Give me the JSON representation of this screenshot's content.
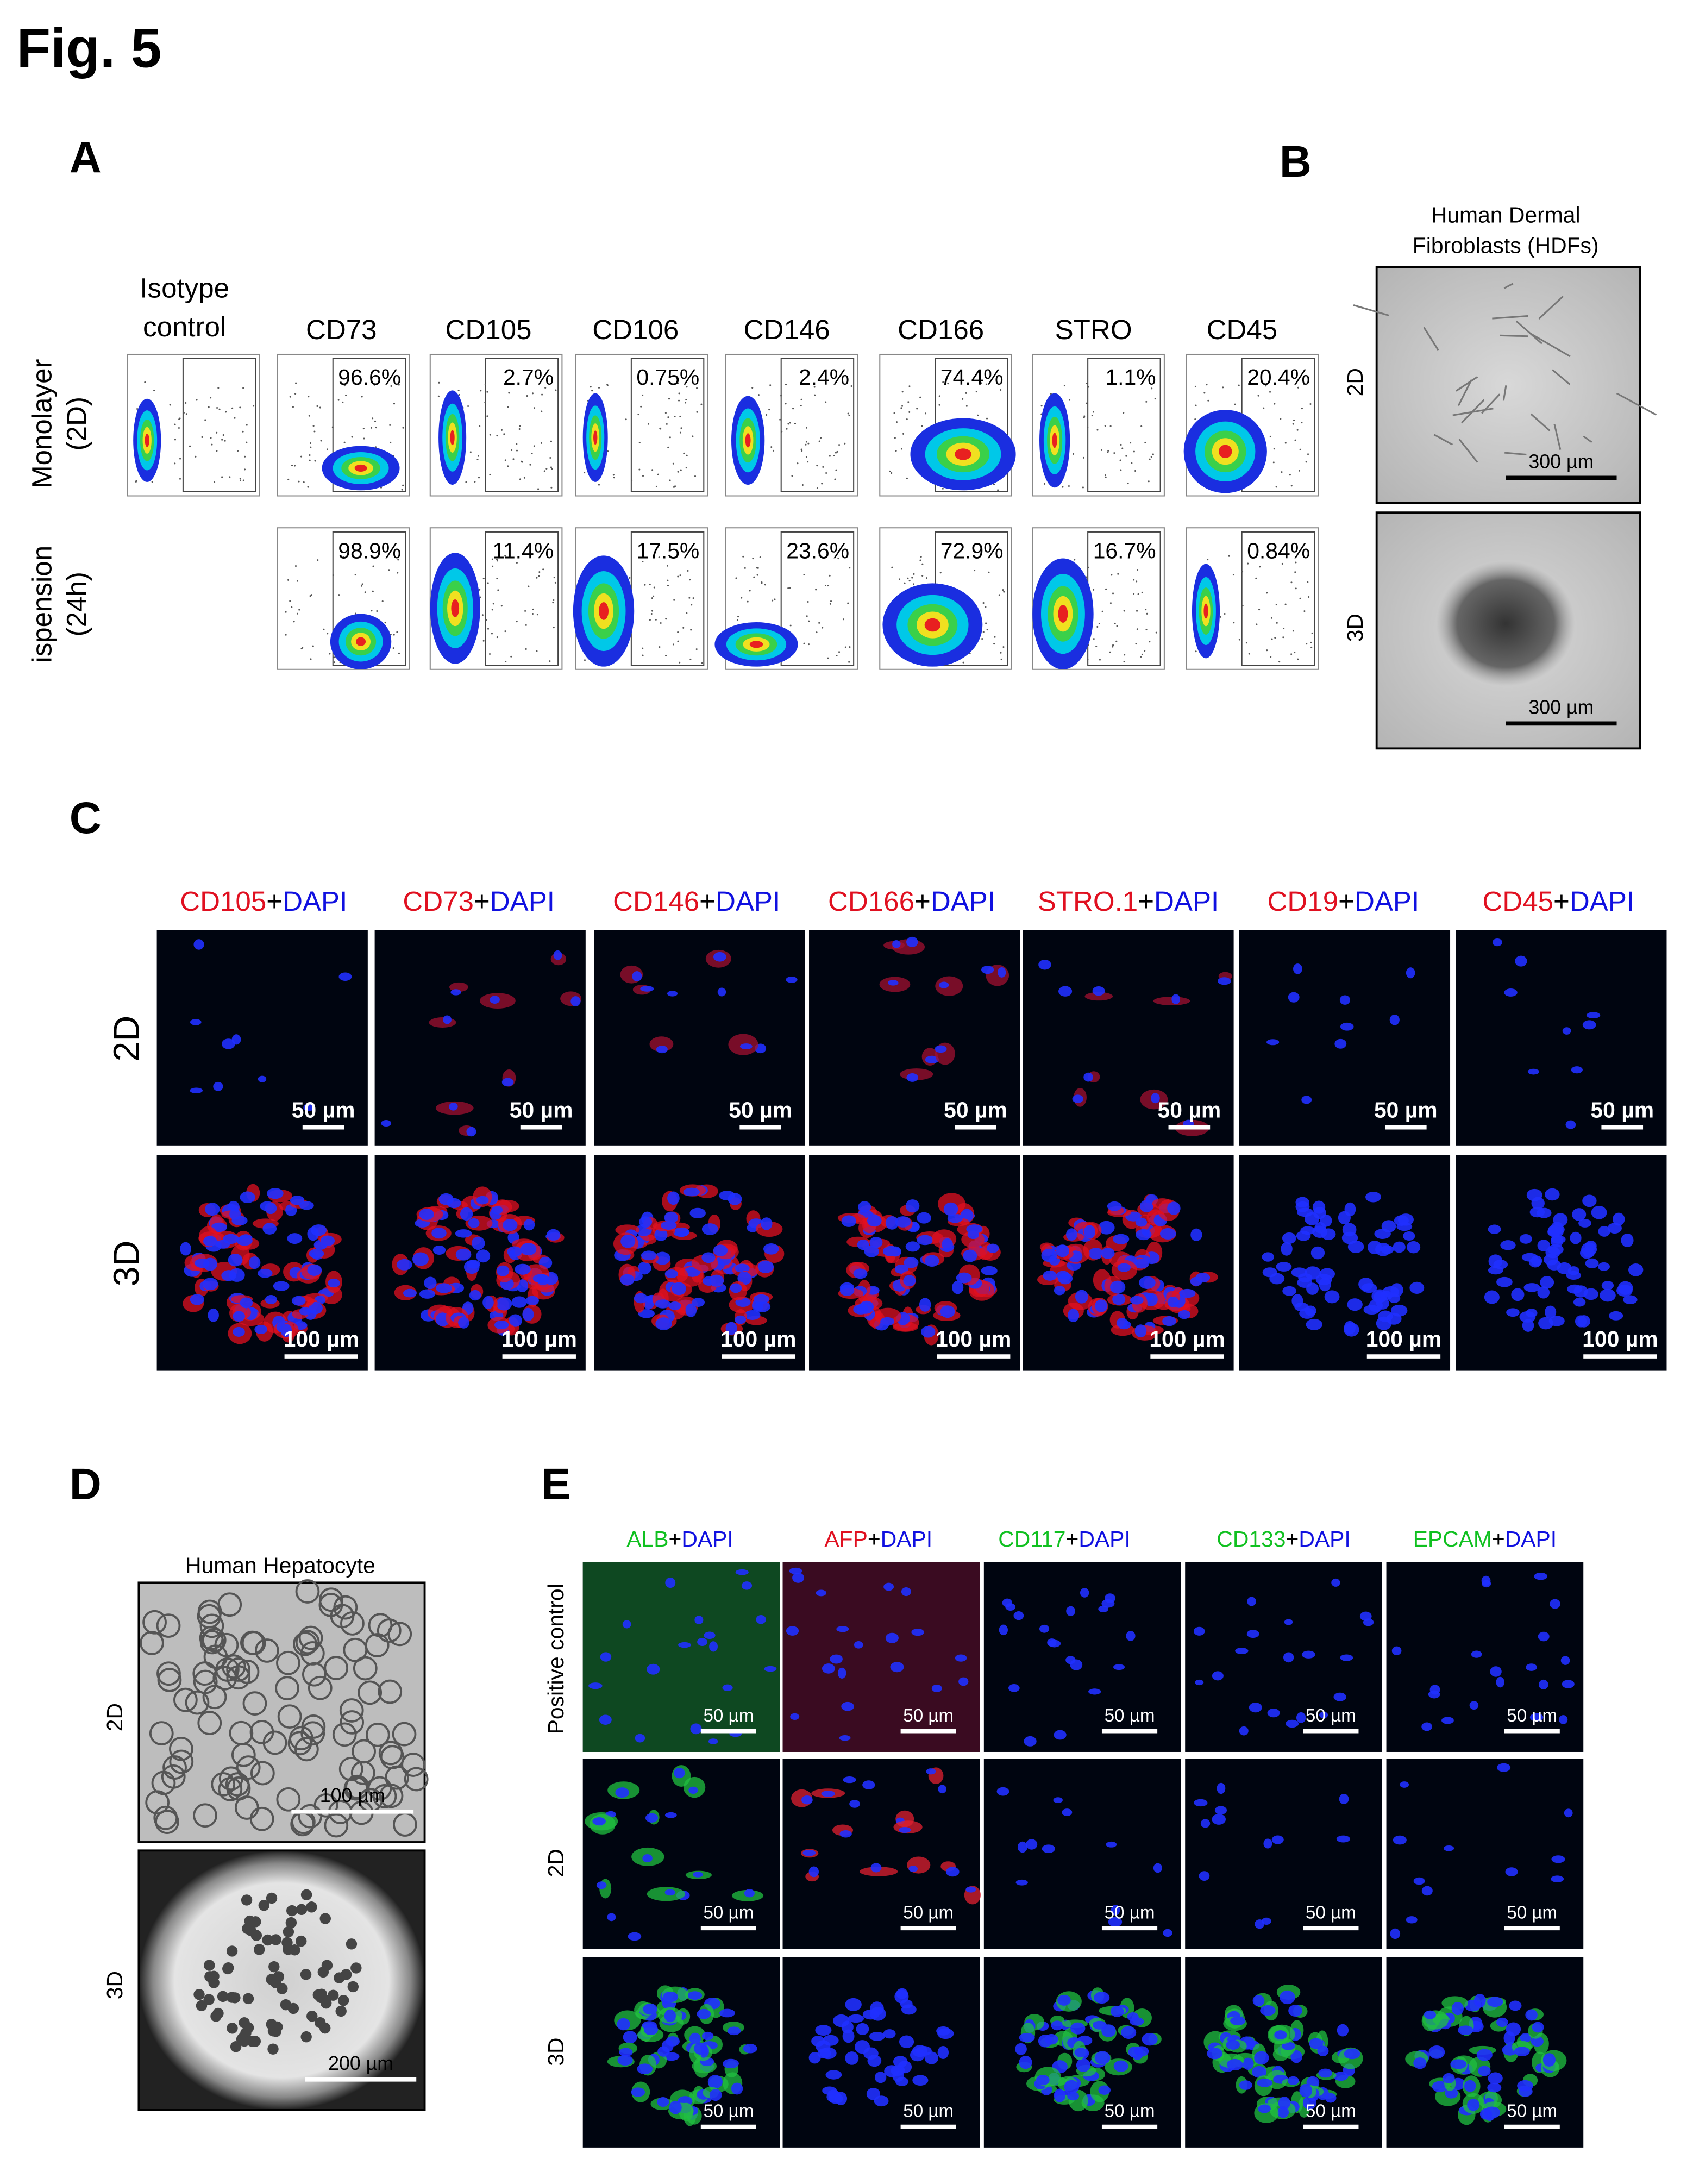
{
  "figure_label": "Fig. 5",
  "panel_a": {
    "label": "A",
    "isotype_header": [
      "Isotype",
      "control"
    ],
    "column_headers": [
      "CD73",
      "CD105",
      "CD106",
      "CD146",
      "CD166",
      "STRO",
      "CD45"
    ],
    "row_labels": [
      [
        "Monolayer",
        "(2D)"
      ],
      [
        "ispension",
        "(24h)"
      ]
    ],
    "percentages": [
      [
        "96.6%",
        "2.7%",
        "0.75%",
        "2.4%",
        "74.4%",
        "1.1%",
        "20.4%"
      ],
      [
        "98.9%",
        "11.4%",
        "17.5%",
        "23.6%",
        "72.9%",
        "16.7%",
        "0.84%"
      ]
    ]
  },
  "panel_b": {
    "label": "B",
    "title": [
      "Human Dermal",
      "Fibroblasts (HDFs)"
    ],
    "row_labels": [
      "2D",
      "3D"
    ],
    "scale_bars": [
      "300 µm",
      "300 µm"
    ]
  },
  "panel_c": {
    "label": "C",
    "headers": [
      [
        "CD105",
        "+",
        "DAPI"
      ],
      [
        "CD73",
        "+",
        "DAPI"
      ],
      [
        "CD146",
        "+",
        "DAPI"
      ],
      [
        "CD166",
        "+",
        "DAPI"
      ],
      [
        "STRO.1",
        "+",
        "DAPI"
      ],
      [
        "CD19",
        "+",
        "DAPI"
      ],
      [
        "CD45",
        "+",
        "DAPI"
      ]
    ],
    "row_labels": [
      "2D",
      "3D"
    ],
    "scale_bars": [
      [
        "50 µm",
        "50 µm",
        "50 µm",
        "50 µm",
        "50 µm",
        "50 µm",
        "50 µm"
      ],
      [
        "100 µm",
        "100 µm",
        "100 µm",
        "100 µm",
        "100 µm",
        "100 µm",
        "100 µm"
      ]
    ]
  },
  "panel_d": {
    "label": "D",
    "title": "Human Hepatocyte",
    "row_labels": [
      "2D",
      "3D"
    ],
    "scale_bars": [
      "100 µm",
      "200 µm"
    ]
  },
  "panel_e": {
    "label": "E",
    "headers": [
      [
        "ALB",
        "+",
        "DAPI"
      ],
      [
        "AFP",
        "+",
        "DAPI"
      ],
      [
        "CD117",
        "+",
        "DAPI"
      ],
      [
        "CD133",
        "+",
        "DAPI"
      ],
      [
        "EPCAM",
        "+",
        "DAPI"
      ]
    ],
    "row_labels": [
      "Positive control",
      "2D",
      "3D"
    ],
    "scale_bars": [
      [
        "50 µm",
        "50 µm",
        "50 µm",
        "50 µm",
        "50 µm"
      ],
      [
        "50 µm",
        "50 µm",
        "50 µm",
        "50 µm",
        "50 µm"
      ],
      [
        "50 µm",
        "50 µm",
        "50 µm",
        "50 µm",
        "50 µm"
      ]
    ]
  }
}
